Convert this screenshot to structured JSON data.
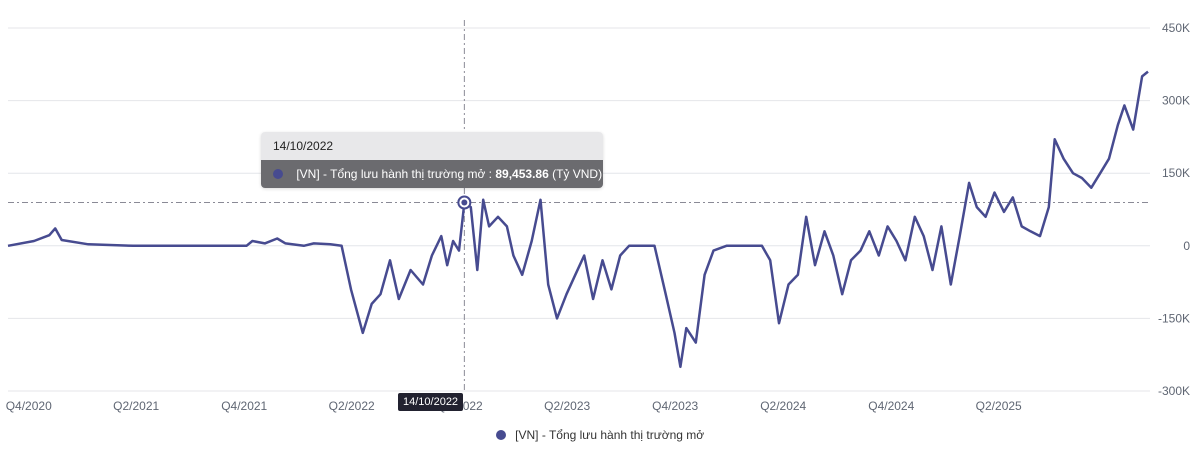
{
  "chart_data": {
    "type": "line",
    "title": "",
    "xlabel": "",
    "ylabel": "",
    "series_name": "[VN] - Tổng lưu hành thị trường mở",
    "ylim": [
      -300000,
      450000
    ],
    "y_ticks": [
      -300000,
      -150000,
      0,
      150000,
      300000,
      450000
    ],
    "y_tick_labels": [
      "-300K",
      "-150K",
      "0",
      "150K",
      "300K",
      "450K"
    ],
    "x_ticks": [
      "Q4/2020",
      "Q2/2021",
      "Q4/2021",
      "Q2/2022",
      "Q4/2022",
      "Q2/2023",
      "Q4/2023",
      "Q2/2024",
      "Q4/2024",
      "Q2/2025"
    ],
    "grid": "horizontal",
    "legend_position": "bottom-center",
    "points": [
      [
        "2020-09-01",
        0
      ],
      [
        "2020-10-15",
        10000
      ],
      [
        "2020-11-10",
        22000
      ],
      [
        "2020-11-20",
        36000
      ],
      [
        "2020-12-01",
        12000
      ],
      [
        "2021-01-15",
        3000
      ],
      [
        "2021-04-01",
        0
      ],
      [
        "2021-10-10",
        0
      ],
      [
        "2021-10-20",
        10000
      ],
      [
        "2021-11-10",
        5000
      ],
      [
        "2021-12-01",
        15000
      ],
      [
        "2021-12-15",
        5000
      ],
      [
        "2022-01-15",
        0
      ],
      [
        "2022-02-01",
        5000
      ],
      [
        "2022-03-01",
        3000
      ],
      [
        "2022-03-20",
        0
      ],
      [
        "2022-04-05",
        -90000
      ],
      [
        "2022-04-25",
        -180000
      ],
      [
        "2022-05-10",
        -120000
      ],
      [
        "2022-05-25",
        -100000
      ],
      [
        "2022-06-10",
        -30000
      ],
      [
        "2022-06-25",
        -110000
      ],
      [
        "2022-07-15",
        -50000
      ],
      [
        "2022-08-05",
        -80000
      ],
      [
        "2022-08-20",
        -20000
      ],
      [
        "2022-09-05",
        20000
      ],
      [
        "2022-09-15",
        -40000
      ],
      [
        "2022-09-25",
        10000
      ],
      [
        "2022-10-05",
        -10000
      ],
      [
        "2022-10-14",
        89453.86
      ],
      [
        "2022-10-25",
        80000
      ],
      [
        "2022-11-05",
        -50000
      ],
      [
        "2022-11-15",
        95000
      ],
      [
        "2022-11-25",
        40000
      ],
      [
        "2022-12-10",
        60000
      ],
      [
        "2022-12-25",
        40000
      ],
      [
        "2023-01-05",
        -20000
      ],
      [
        "2023-01-20",
        -60000
      ],
      [
        "2023-02-05",
        10000
      ],
      [
        "2023-02-20",
        95000
      ],
      [
        "2023-03-05",
        -80000
      ],
      [
        "2023-03-20",
        -150000
      ],
      [
        "2023-04-05",
        -100000
      ],
      [
        "2023-04-20",
        -60000
      ],
      [
        "2023-05-05",
        -20000
      ],
      [
        "2023-05-20",
        -110000
      ],
      [
        "2023-06-05",
        -30000
      ],
      [
        "2023-06-20",
        -90000
      ],
      [
        "2023-07-05",
        -20000
      ],
      [
        "2023-07-20",
        0
      ],
      [
        "2023-09-01",
        0
      ],
      [
        "2023-09-20",
        -100000
      ],
      [
        "2023-10-05",
        -180000
      ],
      [
        "2023-10-15",
        -250000
      ],
      [
        "2023-10-25",
        -170000
      ],
      [
        "2023-11-10",
        -200000
      ],
      [
        "2023-11-25",
        -60000
      ],
      [
        "2023-12-10",
        -10000
      ],
      [
        "2024-01-01",
        0
      ],
      [
        "2024-03-01",
        0
      ],
      [
        "2024-03-15",
        -30000
      ],
      [
        "2024-03-30",
        -160000
      ],
      [
        "2024-04-15",
        -80000
      ],
      [
        "2024-05-01",
        -60000
      ],
      [
        "2024-05-15",
        60000
      ],
      [
        "2024-05-30",
        -40000
      ],
      [
        "2024-06-15",
        30000
      ],
      [
        "2024-06-30",
        -20000
      ],
      [
        "2024-07-15",
        -100000
      ],
      [
        "2024-07-30",
        -30000
      ],
      [
        "2024-08-15",
        -10000
      ],
      [
        "2024-08-30",
        30000
      ],
      [
        "2024-09-15",
        -20000
      ],
      [
        "2024-09-30",
        40000
      ],
      [
        "2024-10-15",
        10000
      ],
      [
        "2024-10-30",
        -30000
      ],
      [
        "2024-11-15",
        60000
      ],
      [
        "2024-11-30",
        20000
      ],
      [
        "2024-12-15",
        -50000
      ],
      [
        "2024-12-30",
        40000
      ],
      [
        "2025-01-15",
        -80000
      ],
      [
        "2025-01-30",
        20000
      ],
      [
        "2025-02-15",
        130000
      ],
      [
        "2025-02-28",
        80000
      ],
      [
        "2025-03-15",
        60000
      ],
      [
        "2025-03-30",
        110000
      ],
      [
        "2025-04-15",
        70000
      ],
      [
        "2025-04-30",
        100000
      ],
      [
        "2025-05-15",
        40000
      ],
      [
        "2025-05-30",
        30000
      ],
      [
        "2025-06-15",
        20000
      ],
      [
        "2025-06-30",
        80000
      ],
      [
        "2025-07-10",
        220000
      ],
      [
        "2025-07-25",
        180000
      ],
      [
        "2025-08-10",
        150000
      ],
      [
        "2025-08-25",
        140000
      ],
      [
        "2025-09-10",
        120000
      ],
      [
        "2025-09-25",
        150000
      ],
      [
        "2025-10-10",
        180000
      ],
      [
        "2025-10-25",
        250000
      ],
      [
        "2025-11-05",
        290000
      ],
      [
        "2025-11-20",
        240000
      ],
      [
        "2025-12-05",
        350000
      ],
      [
        "2025-12-15",
        360000
      ]
    ],
    "highlight": {
      "date_label": "14/10/2022",
      "date": "2022-10-14",
      "value": 89453.86,
      "value_text": "89,453.86",
      "unit_text": "(Tỷ VND)"
    }
  },
  "colors": {
    "series": "#474b90",
    "grid": "#e4e6ea",
    "crosshair": "#8a8a96"
  },
  "tooltip": {
    "date": "14/10/2022",
    "series_label": "[VN] - Tổng lưu hành thị trường mở :",
    "value": "89,453.86",
    "unit": "(Tỷ VND)"
  },
  "crosshair_label": "14/10/2022",
  "legend": {
    "label": "[VN] - Tổng lưu hành thị trường mở"
  }
}
